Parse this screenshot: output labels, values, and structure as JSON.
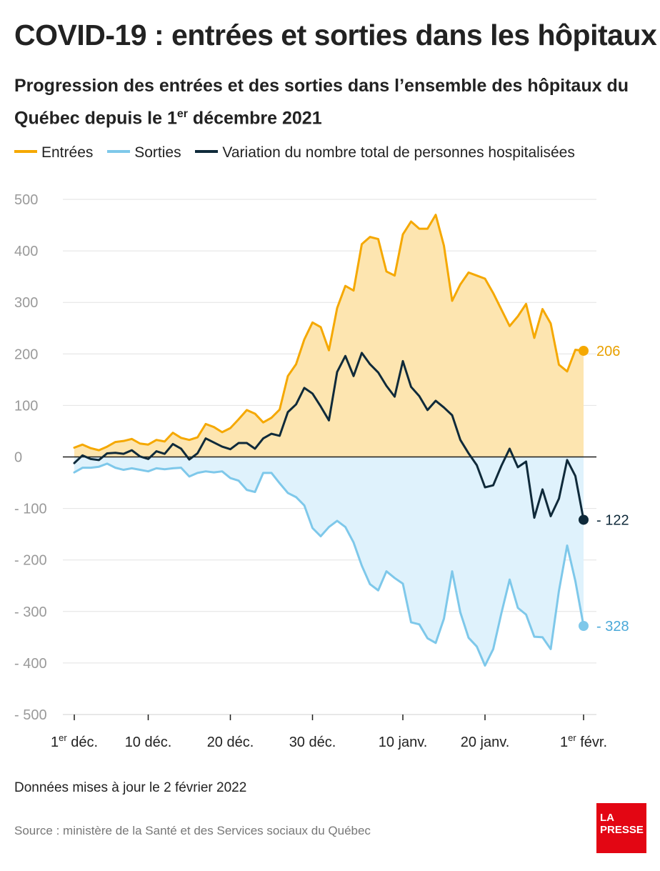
{
  "header": {
    "title": "COVID-19 : entrées et sorties dans les hôpitaux",
    "subtitle_part1": "Progression des entrées et des sorties dans l’ensemble des hôpitaux du Québec depuis le 1",
    "subtitle_sup": "er",
    "subtitle_part2": " décembre 2021"
  },
  "legend": [
    {
      "label": "Entrées",
      "color": "#f5a800"
    },
    {
      "label": "Sorties",
      "color": "#7ec8ea"
    },
    {
      "label": "Variation du nombre total de personnes hospitalisées",
      "color": "#0f2a3a"
    }
  ],
  "chart_data": {
    "type": "area",
    "x_start": "2021-12-01",
    "x_end": "2022-02-01",
    "xticks": [
      {
        "main": "1",
        "sup": "er",
        "rest": " déc.",
        "day": 0
      },
      {
        "main": "10 déc.",
        "sup": "",
        "rest": "",
        "day": 9
      },
      {
        "main": "20 déc.",
        "sup": "",
        "rest": "",
        "day": 19
      },
      {
        "main": "30 déc.",
        "sup": "",
        "rest": "",
        "day": 29
      },
      {
        "main": "10 janv.",
        "sup": "",
        "rest": "",
        "day": 40
      },
      {
        "main": "20 janv.",
        "sup": "",
        "rest": "",
        "day": 50
      },
      {
        "main": "1",
        "sup": "er",
        "rest": " févr.",
        "day": 62
      }
    ],
    "yticks": [
      "500",
      "400",
      "300",
      "200",
      "100",
      "0",
      "- 100",
      "- 200",
      "- 300",
      "- 400",
      "- 500"
    ],
    "ylim": [
      -500,
      500
    ],
    "grid": true,
    "series": [
      {
        "name": "Entrées",
        "color": "#f5a800",
        "fill": "#fde5b0",
        "values": [
          18,
          24,
          17,
          13,
          20,
          29,
          31,
          35,
          26,
          24,
          33,
          30,
          47,
          37,
          33,
          38,
          64,
          58,
          48,
          56,
          73,
          91,
          84,
          67,
          76,
          92,
          157,
          180,
          228,
          261,
          252,
          207,
          289,
          332,
          323,
          413,
          427,
          423,
          360,
          352,
          432,
          457,
          443,
          443,
          470,
          410,
          303,
          335,
          358,
          352,
          346,
          318,
          286,
          254,
          273,
          297,
          231,
          287,
          259,
          179,
          166,
          208,
          206
        ]
      },
      {
        "name": "Sorties",
        "color": "#7ec8ea",
        "fill": "#dff2fc",
        "values": [
          -30,
          -21,
          -21,
          -19,
          -13,
          -21,
          -25,
          -22,
          -25,
          -28,
          -22,
          -24,
          -22,
          -21,
          -38,
          -31,
          -28,
          -30,
          -28,
          -41,
          -46,
          -64,
          -68,
          -31,
          -31,
          -51,
          -70,
          -78,
          -94,
          -138,
          -154,
          -136,
          -124,
          -136,
          -166,
          -211,
          -247,
          -259,
          -222,
          -235,
          -246,
          -321,
          -325,
          -352,
          -361,
          -314,
          -222,
          -302,
          -351,
          -368,
          -405,
          -373,
          -303,
          -238,
          -293,
          -306,
          -349,
          -350,
          -373,
          -260,
          -172,
          -241,
          -328
        ]
      },
      {
        "name": "Variation du nombre total de personnes hospitalisées",
        "color": "#0f2a3a",
        "fill": "none",
        "values": [
          -12,
          3,
          -4,
          -6,
          7,
          8,
          6,
          13,
          1,
          -4,
          11,
          6,
          25,
          16,
          -5,
          7,
          36,
          28,
          20,
          15,
          27,
          27,
          16,
          36,
          45,
          41,
          87,
          102,
          134,
          123,
          98,
          71,
          165,
          196,
          157,
          202,
          180,
          164,
          138,
          117,
          186,
          136,
          118,
          91,
          109,
          96,
          81,
          33,
          7,
          -16,
          -59,
          -55,
          -17,
          16,
          -20,
          -9,
          -118,
          -63,
          -115,
          -81,
          -6,
          -37,
          -122
        ]
      }
    ],
    "end_labels": [
      {
        "text": "206",
        "value": 206,
        "color": "#e8a000"
      },
      {
        "text": "- 122",
        "value": -122,
        "color": "#0f2a3a"
      },
      {
        "text": "- 328",
        "value": -328,
        "color": "#4aa8d8"
      }
    ]
  },
  "footer": {
    "note": "Données mises à jour le 2 février 2022",
    "source": "Source : ministère de la Santé et des Services sociaux du Québec",
    "logo_line1": "LA",
    "logo_line2": "PRESSE"
  }
}
